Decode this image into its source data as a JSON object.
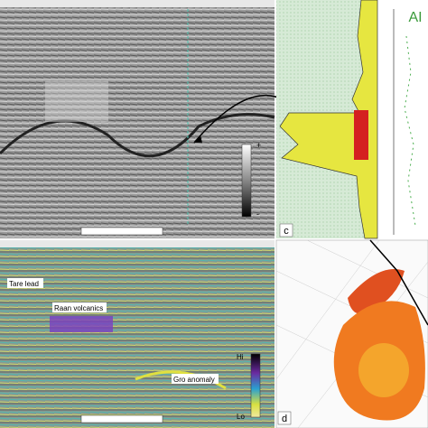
{
  "panels": {
    "a": {
      "colorbar": {
        "top": "+",
        "bottom": "-"
      }
    },
    "b": {
      "annotations": [
        "Tare lead",
        "Raan volcanics",
        "Gro anomaly"
      ],
      "colorbar": {
        "top": "Hi",
        "bottom": "Lo"
      }
    },
    "c": {
      "label": "c"
    },
    "ai": {
      "label": "AI"
    },
    "d": {
      "label": "d"
    }
  }
}
